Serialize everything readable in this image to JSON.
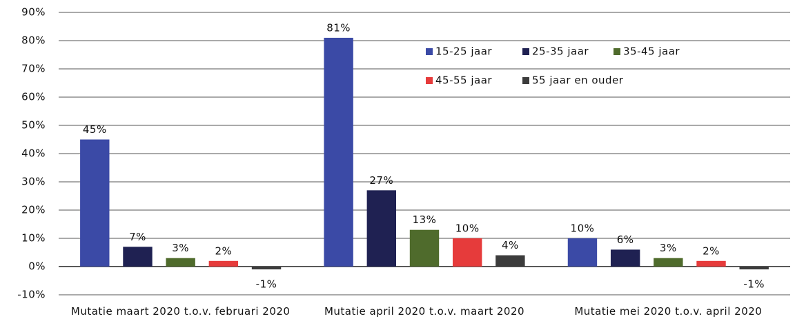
{
  "chart_data": {
    "type": "bar",
    "categories": [
      "Mutatie maart 2020 t.o.v. februari 2020",
      "Mutatie april 2020 t.o.v. maart 2020",
      "Mutatie mei 2020 t.o.v. april 2020"
    ],
    "series": [
      {
        "name": "15-25 jaar",
        "color": "#3b4aa6",
        "values": [
          45,
          81,
          10
        ],
        "value_labels": [
          "45%",
          "81%",
          "10%"
        ]
      },
      {
        "name": "25-35 jaar",
        "color": "#1f2152",
        "values": [
          7,
          27,
          6
        ],
        "value_labels": [
          "7%",
          "27%",
          "6%"
        ]
      },
      {
        "name": "35-45 jaar",
        "color": "#4f6b2c",
        "values": [
          3,
          13,
          3
        ],
        "value_labels": [
          "3%",
          "13%",
          "3%"
        ]
      },
      {
        "name": "45-55 jaar",
        "color": "#e63b3b",
        "values": [
          2,
          10,
          2
        ],
        "value_labels": [
          "2%",
          "10%",
          "2%"
        ]
      },
      {
        "name": "55 jaar en ouder",
        "color": "#3c3c3c",
        "values": [
          -1,
          4,
          -1
        ],
        "value_labels": [
          "-1%",
          "4%",
          "-1%"
        ]
      }
    ],
    "ylim": [
      -10,
      90
    ],
    "yticks": [
      {
        "value": -10,
        "label": "-10%"
      },
      {
        "value": 0,
        "label": "0%"
      },
      {
        "value": 10,
        "label": "10%"
      },
      {
        "value": 20,
        "label": "20%"
      },
      {
        "value": 30,
        "label": "30%"
      },
      {
        "value": 40,
        "label": "40%"
      },
      {
        "value": 50,
        "label": "50%"
      },
      {
        "value": 60,
        "label": "60%"
      },
      {
        "value": 70,
        "label": "70%"
      },
      {
        "value": 80,
        "label": "80%"
      },
      {
        "value": 90,
        "label": "90%"
      }
    ],
    "grid": true
  }
}
